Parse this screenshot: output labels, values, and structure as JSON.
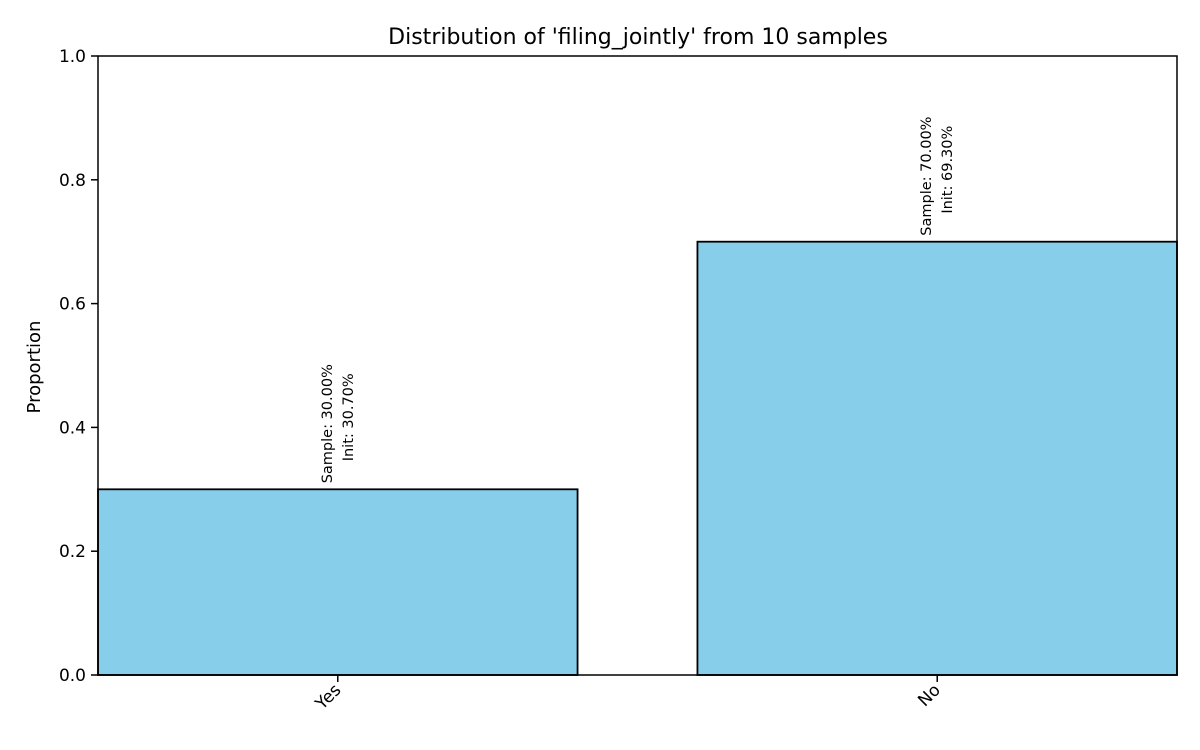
{
  "chart_data": {
    "type": "bar",
    "title": "Distribution of 'filing_jointly' from 10 samples",
    "xlabel": "",
    "ylabel": "Proportion",
    "categories": [
      "Yes",
      "No"
    ],
    "values": [
      0.3,
      0.7
    ],
    "ylim": [
      0,
      1
    ],
    "yticks": [
      "0.0",
      "0.2",
      "0.4",
      "0.6",
      "0.8",
      "1.0"
    ],
    "grid": false,
    "bar_labels": [
      {
        "sample": "Sample: 30.00%",
        "init": "Init: 30.70%"
      },
      {
        "sample": "Sample: 70.00%",
        "init": "Init: 69.30%"
      }
    ],
    "colors": {
      "bar_fill": "#87CEEB",
      "bar_edge": "#000000",
      "axis": "#000000"
    }
  }
}
